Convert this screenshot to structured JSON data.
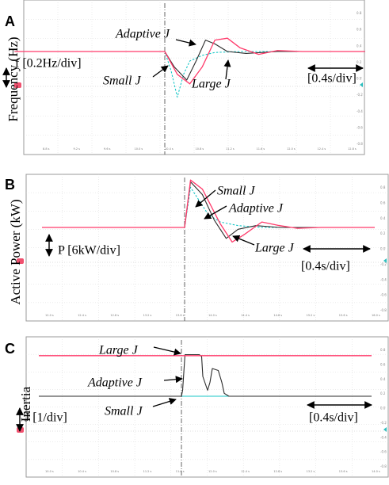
{
  "chart_data": [
    {
      "type": "line",
      "panel_label": "A",
      "ylabel": "Frequency (Hz)",
      "scale_label": "f [0.2Hz/div]",
      "time_scale_label": "[0.4s/div]",
      "step_time_s": 0.0,
      "xlim": [
        -2.4,
        3.2
      ],
      "ylim": [
        -4,
        4
      ],
      "trace_colors": [
        "#ff3b6b",
        "#2b2b2b",
        "#19c7c7"
      ],
      "series": [
        {
          "name": "Large J",
          "color": "#ff3b6b",
          "dash": false,
          "x": [
            -2.4,
            0.0,
            0.2,
            0.4,
            0.6,
            0.8,
            1.0,
            1.2,
            1.5,
            1.8,
            2.2,
            3.2
          ],
          "y": [
            0,
            0,
            -1.2,
            -1.7,
            -0.8,
            0.6,
            0.7,
            0.2,
            -0.15,
            0.05,
            0,
            0
          ]
        },
        {
          "name": "Adaptive J",
          "color": "#2b2b2b",
          "dash": false,
          "x": [
            -2.4,
            0.0,
            0.15,
            0.35,
            0.5,
            0.65,
            0.8,
            1.0,
            1.3,
            1.8,
            3.2
          ],
          "y": [
            0,
            0,
            -0.8,
            -1.5,
            -0.5,
            0.6,
            0.4,
            0.0,
            -0.1,
            0,
            0
          ]
        },
        {
          "name": "Small J",
          "color": "#19c7c7",
          "dash": true,
          "x": [
            -2.4,
            0.0,
            0.1,
            0.2,
            0.3,
            0.4,
            0.6,
            0.8,
            1.2,
            3.2
          ],
          "y": [
            0,
            0,
            -1.0,
            -2.4,
            -1.2,
            -0.5,
            -0.2,
            -0.05,
            0,
            0
          ]
        }
      ],
      "annotations": [
        {
          "text": "Adaptive J",
          "target_series": "Adaptive J"
        },
        {
          "text": "Small J",
          "target_series": "Small J"
        },
        {
          "text": "Large J",
          "target_series": "Large J"
        }
      ],
      "time_axis_ticks": [
        "8.8 s",
        "9.2 s",
        "9.6 s",
        "10.0 s",
        "10.4 s",
        "10.8 s",
        "11.2 s",
        "11.6 s",
        "12.0 s",
        "12.4 s",
        "12.8 s"
      ],
      "right_ticks": [
        "0.8",
        "0.6",
        "0.4",
        "0.2",
        "0.0",
        "-0.2",
        "-0.4",
        "-0.6",
        "-0.8"
      ]
    },
    {
      "type": "line",
      "panel_label": "B",
      "ylabel": "Active Power (kW)",
      "scale_label": "P [6kW/div]",
      "time_scale_label": "[0.4s/div]",
      "step_time_s": 0.0,
      "xlim": [
        -2.4,
        3.2
      ],
      "ylim": [
        -4,
        4
      ],
      "trace_colors": [
        "#ff3b6b",
        "#2b2b2b",
        "#19c7c7"
      ],
      "series": [
        {
          "name": "Large J",
          "color": "#ff3b6b",
          "dash": false,
          "x": [
            -2.4,
            0.0,
            0.1,
            0.3,
            0.6,
            0.8,
            1.0,
            1.3,
            1.6,
            1.9,
            2.3,
            3.2
          ],
          "y": [
            0,
            0,
            2.6,
            2.1,
            0.2,
            -0.8,
            -0.4,
            0.3,
            0.1,
            -0.05,
            0,
            0
          ]
        },
        {
          "name": "Adaptive J",
          "color": "#2b2b2b",
          "dash": false,
          "x": [
            -2.4,
            0.0,
            0.1,
            0.3,
            0.5,
            0.7,
            0.9,
            1.2,
            1.6,
            3.2
          ],
          "y": [
            0,
            0,
            2.5,
            1.8,
            0.4,
            -0.6,
            -0.1,
            0.1,
            0,
            0
          ]
        },
        {
          "name": "Small J",
          "color": "#19c7c7",
          "dash": true,
          "x": [
            -2.4,
            0.0,
            0.1,
            0.2,
            0.4,
            0.6,
            0.9,
            1.3,
            3.2
          ],
          "y": [
            0,
            0,
            2.2,
            1.7,
            0.7,
            0.3,
            0.1,
            0,
            0
          ]
        }
      ],
      "annotations": [
        {
          "text": "Small J",
          "target_series": "Small J"
        },
        {
          "text": "Adaptive J",
          "target_series": "Adaptive J"
        },
        {
          "text": "Large J",
          "target_series": "Large J"
        }
      ],
      "time_axis_ticks": [
        "12.0 s",
        "12.4 s",
        "12.8 s",
        "13.2 s",
        "13.6 s",
        "14.0 s",
        "14.4 s",
        "14.8 s",
        "15.2 s",
        "15.6 s",
        "16.0 s"
      ],
      "right_ticks": [
        "0.8",
        "0.6",
        "0.4",
        "0.2",
        "0.0",
        "-0.2",
        "-0.4",
        "-0.6",
        "-0.8"
      ]
    },
    {
      "type": "line",
      "panel_label": "C",
      "ylabel": "Inertia",
      "scale_label": "J [1/div]",
      "time_scale_label": "[0.4s/div]",
      "step_time_s": 0.0,
      "xlim": [
        -2.4,
        3.2
      ],
      "ylim": [
        -4,
        4
      ],
      "trace_colors": [
        "#ff3b6b",
        "#2b2b2b",
        "#19c7c7"
      ],
      "series": [
        {
          "name": "Large J",
          "color": "#ff3b6b",
          "dash": false,
          "x": [
            -2.4,
            3.2
          ],
          "y": [
            2.05,
            2.05
          ]
        },
        {
          "name": "Adaptive J",
          "color": "#2b2b2b",
          "dash": false,
          "x": [
            -2.4,
            0.0,
            0.02,
            0.06,
            0.3,
            0.34,
            0.36,
            0.44,
            0.48,
            0.52,
            0.62,
            0.68,
            0.72,
            0.8,
            3.2
          ],
          "y": [
            0,
            0,
            0.3,
            2.1,
            2.1,
            2.0,
            1.0,
            0.3,
            0.7,
            1.4,
            1.3,
            0.7,
            0.15,
            0,
            0
          ]
        },
        {
          "name": "Small J",
          "color": "#19c7c7",
          "dash": false,
          "x": [
            -2.4,
            3.2
          ],
          "y": [
            0,
            0
          ]
        }
      ],
      "annotations": [
        {
          "text": "Large J",
          "target_series": "Large J"
        },
        {
          "text": "Adaptive J",
          "target_series": "Adaptive J"
        },
        {
          "text": "Small J",
          "target_series": "Small J"
        }
      ],
      "time_axis_ticks": [
        "10.0 s",
        "10.4 s",
        "10.8 s",
        "11.2 s",
        "11.6 s",
        "12.0 s",
        "12.4 s",
        "12.8 s",
        "13.2 s",
        "13.6 s",
        "14.0 s"
      ],
      "right_ticks": [
        "0.8",
        "0.6",
        "0.4",
        "0.2",
        "0.0",
        "-0.2",
        "-0.4",
        "-0.6",
        "-0.8"
      ]
    }
  ]
}
